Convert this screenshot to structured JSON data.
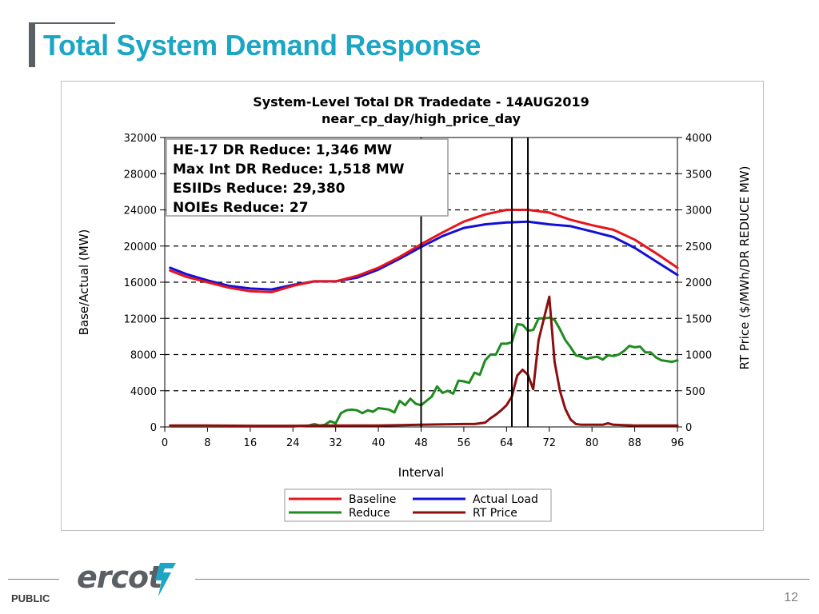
{
  "slide": {
    "title": "Total System Demand Response",
    "footer_label": "PUBLIC",
    "page_number": "12",
    "logo_text": "ercot"
  },
  "colors": {
    "title": "#1aa6c4",
    "baseline": "#e8141c",
    "actual_load": "#1010d8",
    "reduce": "#1e8c1e",
    "rt_price": "#8b0f0f"
  },
  "chart_data": {
    "type": "line",
    "title": "System-Level Total DR  Tradedate - 14AUG2019",
    "subtitle": "near_cp_day/high_price_day",
    "xlabel": "Interval",
    "ylabel": "Base/Actual (MW)",
    "y2label": "RT Price ($/MWh/DR REDUCE MW)",
    "xlim": [
      0,
      96
    ],
    "ylim": [
      0,
      32000
    ],
    "y2lim": [
      0,
      4000
    ],
    "x_ticks": [
      0,
      8,
      16,
      24,
      32,
      40,
      48,
      56,
      64,
      72,
      80,
      88,
      96
    ],
    "y_ticks": [
      0,
      4000,
      8000,
      12000,
      16000,
      20000,
      24000,
      28000,
      32000
    ],
    "y2_ticks": [
      0,
      500,
      1000,
      1500,
      2000,
      2500,
      3000,
      3500,
      4000
    ],
    "grid": "horizontal-dashed",
    "vertical_lines": [
      48,
      65,
      68
    ],
    "annotation_lines": [
      "HE-17 DR Reduce: 1,346 MW",
      "Max Int DR Reduce: 1,518 MW",
      "ESIIDs Reduce: 29,380",
      "NOIEs Reduce: 27"
    ],
    "legend_position": "bottom",
    "series": [
      {
        "name": "Baseline",
        "axis": "left",
        "x": [
          1,
          4,
          8,
          12,
          16,
          20,
          24,
          28,
          32,
          36,
          40,
          44,
          48,
          52,
          56,
          60,
          64,
          68,
          72,
          76,
          80,
          84,
          88,
          92,
          96
        ],
        "values": [
          17300,
          16600,
          16000,
          15400,
          15000,
          14900,
          15600,
          16100,
          16100,
          16700,
          17600,
          18800,
          20200,
          21500,
          22700,
          23500,
          24000,
          24000,
          23700,
          22900,
          22300,
          21800,
          20700,
          19200,
          17600
        ]
      },
      {
        "name": "Actual Load",
        "axis": "left",
        "x": [
          1,
          4,
          8,
          12,
          16,
          20,
          24,
          28,
          32,
          36,
          40,
          44,
          48,
          52,
          56,
          60,
          64,
          68,
          72,
          76,
          80,
          84,
          88,
          92,
          96
        ],
        "values": [
          17600,
          16900,
          16200,
          15600,
          15300,
          15200,
          15700,
          16100,
          16100,
          16500,
          17400,
          18600,
          19900,
          21100,
          22000,
          22400,
          22600,
          22700,
          22400,
          22200,
          21600,
          21000,
          19800,
          18300,
          16800
        ]
      },
      {
        "name": "Reduce",
        "axis": "right",
        "x": [
          1,
          8,
          16,
          24,
          27,
          28,
          29,
          30,
          31,
          32,
          33,
          34,
          35,
          36,
          37,
          38,
          39,
          40,
          41,
          42,
          43,
          44,
          45,
          46,
          47,
          48,
          49,
          50,
          51,
          52,
          53,
          54,
          55,
          56,
          57,
          58,
          59,
          60,
          61,
          62,
          63,
          64,
          65,
          66,
          67,
          68,
          69,
          70,
          71,
          72,
          73,
          74,
          75,
          76,
          77,
          78,
          79,
          80,
          81,
          82,
          83,
          84,
          85,
          86,
          87,
          88,
          89,
          90,
          91,
          92,
          93,
          94,
          95,
          96
        ],
        "values": [
          5,
          5,
          5,
          5,
          20,
          40,
          20,
          30,
          80,
          50,
          190,
          230,
          240,
          230,
          190,
          230,
          210,
          260,
          250,
          240,
          200,
          360,
          300,
          390,
          320,
          300,
          360,
          420,
          560,
          470,
          500,
          460,
          640,
          630,
          610,
          750,
          720,
          920,
          1000,
          1000,
          1150,
          1150,
          1170,
          1420,
          1410,
          1330,
          1340,
          1500,
          1500,
          1510,
          1480,
          1350,
          1200,
          1100,
          990,
          970,
          940,
          960,
          970,
          930,
          990,
          980,
          1000,
          1050,
          1120,
          1100,
          1110,
          1030,
          1030,
          960,
          920,
          910,
          900,
          920
        ]
      },
      {
        "name": "RT Price",
        "axis": "right",
        "x": [
          1,
          8,
          16,
          24,
          32,
          40,
          48,
          56,
          58,
          60,
          61,
          62,
          63,
          64,
          65,
          66,
          67,
          68,
          69,
          70,
          71,
          72,
          73,
          74,
          75,
          76,
          77,
          78,
          80,
          82,
          83,
          84,
          88,
          96
        ],
        "values": [
          20,
          20,
          15,
          15,
          20,
          20,
          30,
          40,
          40,
          60,
          120,
          170,
          230,
          300,
          420,
          710,
          790,
          720,
          520,
          1200,
          1500,
          1800,
          900,
          500,
          250,
          100,
          40,
          30,
          30,
          30,
          50,
          30,
          20,
          20
        ]
      }
    ]
  }
}
